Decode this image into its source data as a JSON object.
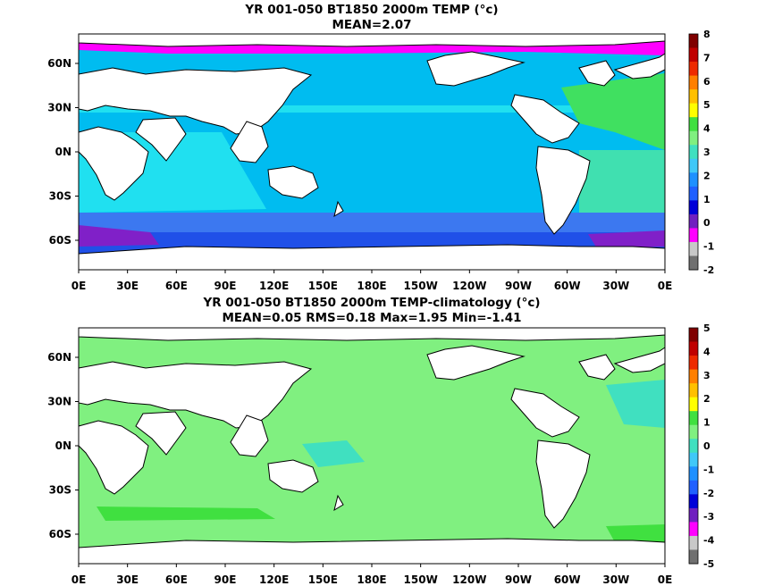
{
  "panels": [
    {
      "title": "YR 001-050 BT1850 2000m TEMP (°c)",
      "subtitle": "MEAN=2.07",
      "colorbar": {
        "labels": [
          "8",
          "7",
          "6",
          "5",
          "4",
          "3",
          "2",
          "1",
          "0",
          "-1",
          "-2"
        ],
        "colors": [
          "#7f0000",
          "#c00000",
          "#ee2a00",
          "#ff7f00",
          "#ffc000",
          "#ffff00",
          "#40e040",
          "#80f080",
          "#40e0c0",
          "#40c8f8",
          "#1e90ff",
          "#2060ff",
          "#0000d8",
          "#7020c0",
          "#ff00ff",
          "#c8c8c8",
          "#707070"
        ]
      },
      "fills": {
        "polar_south": "#8020c8",
        "southern_ocean": "#2050e8",
        "circumpolar": "#3c78f0",
        "pacific": "#00bcf0",
        "indian": "#20e0f0",
        "atlantic_north": "#40e060",
        "atlantic_south": "#40e0b0",
        "arctic": "#ff00ff"
      }
    },
    {
      "title": "YR 001-050 BT1850 2000m TEMP-climatology (°c)",
      "subtitle": "MEAN=0.05   RMS=0.18   Max=1.95   Min=-1.41",
      "colorbar": {
        "labels": [
          "5",
          "4",
          "3",
          "2",
          "1",
          "0",
          "-1",
          "-2",
          "-3",
          "-4",
          "-5"
        ],
        "colors": [
          "#7f0000",
          "#c00000",
          "#ee2a00",
          "#ff7f00",
          "#ffc000",
          "#ffff00",
          "#40e040",
          "#80f080",
          "#40e0c0",
          "#40c8f8",
          "#1e90ff",
          "#2060ff",
          "#0000d8",
          "#7020c0",
          "#ff00ff",
          "#c8c8c8",
          "#707070"
        ]
      },
      "fills": {
        "ocean": "#80f080",
        "band": "#40e040",
        "patches": "#40e0c0"
      }
    }
  ],
  "axes": {
    "x_ticks": [
      "0E",
      "30E",
      "60E",
      "90E",
      "120E",
      "150E",
      "180E",
      "150W",
      "120W",
      "90W",
      "60W",
      "30W",
      "0E"
    ],
    "y_ticks": [
      "60N",
      "30N",
      "0N",
      "30S",
      "60S"
    ]
  }
}
